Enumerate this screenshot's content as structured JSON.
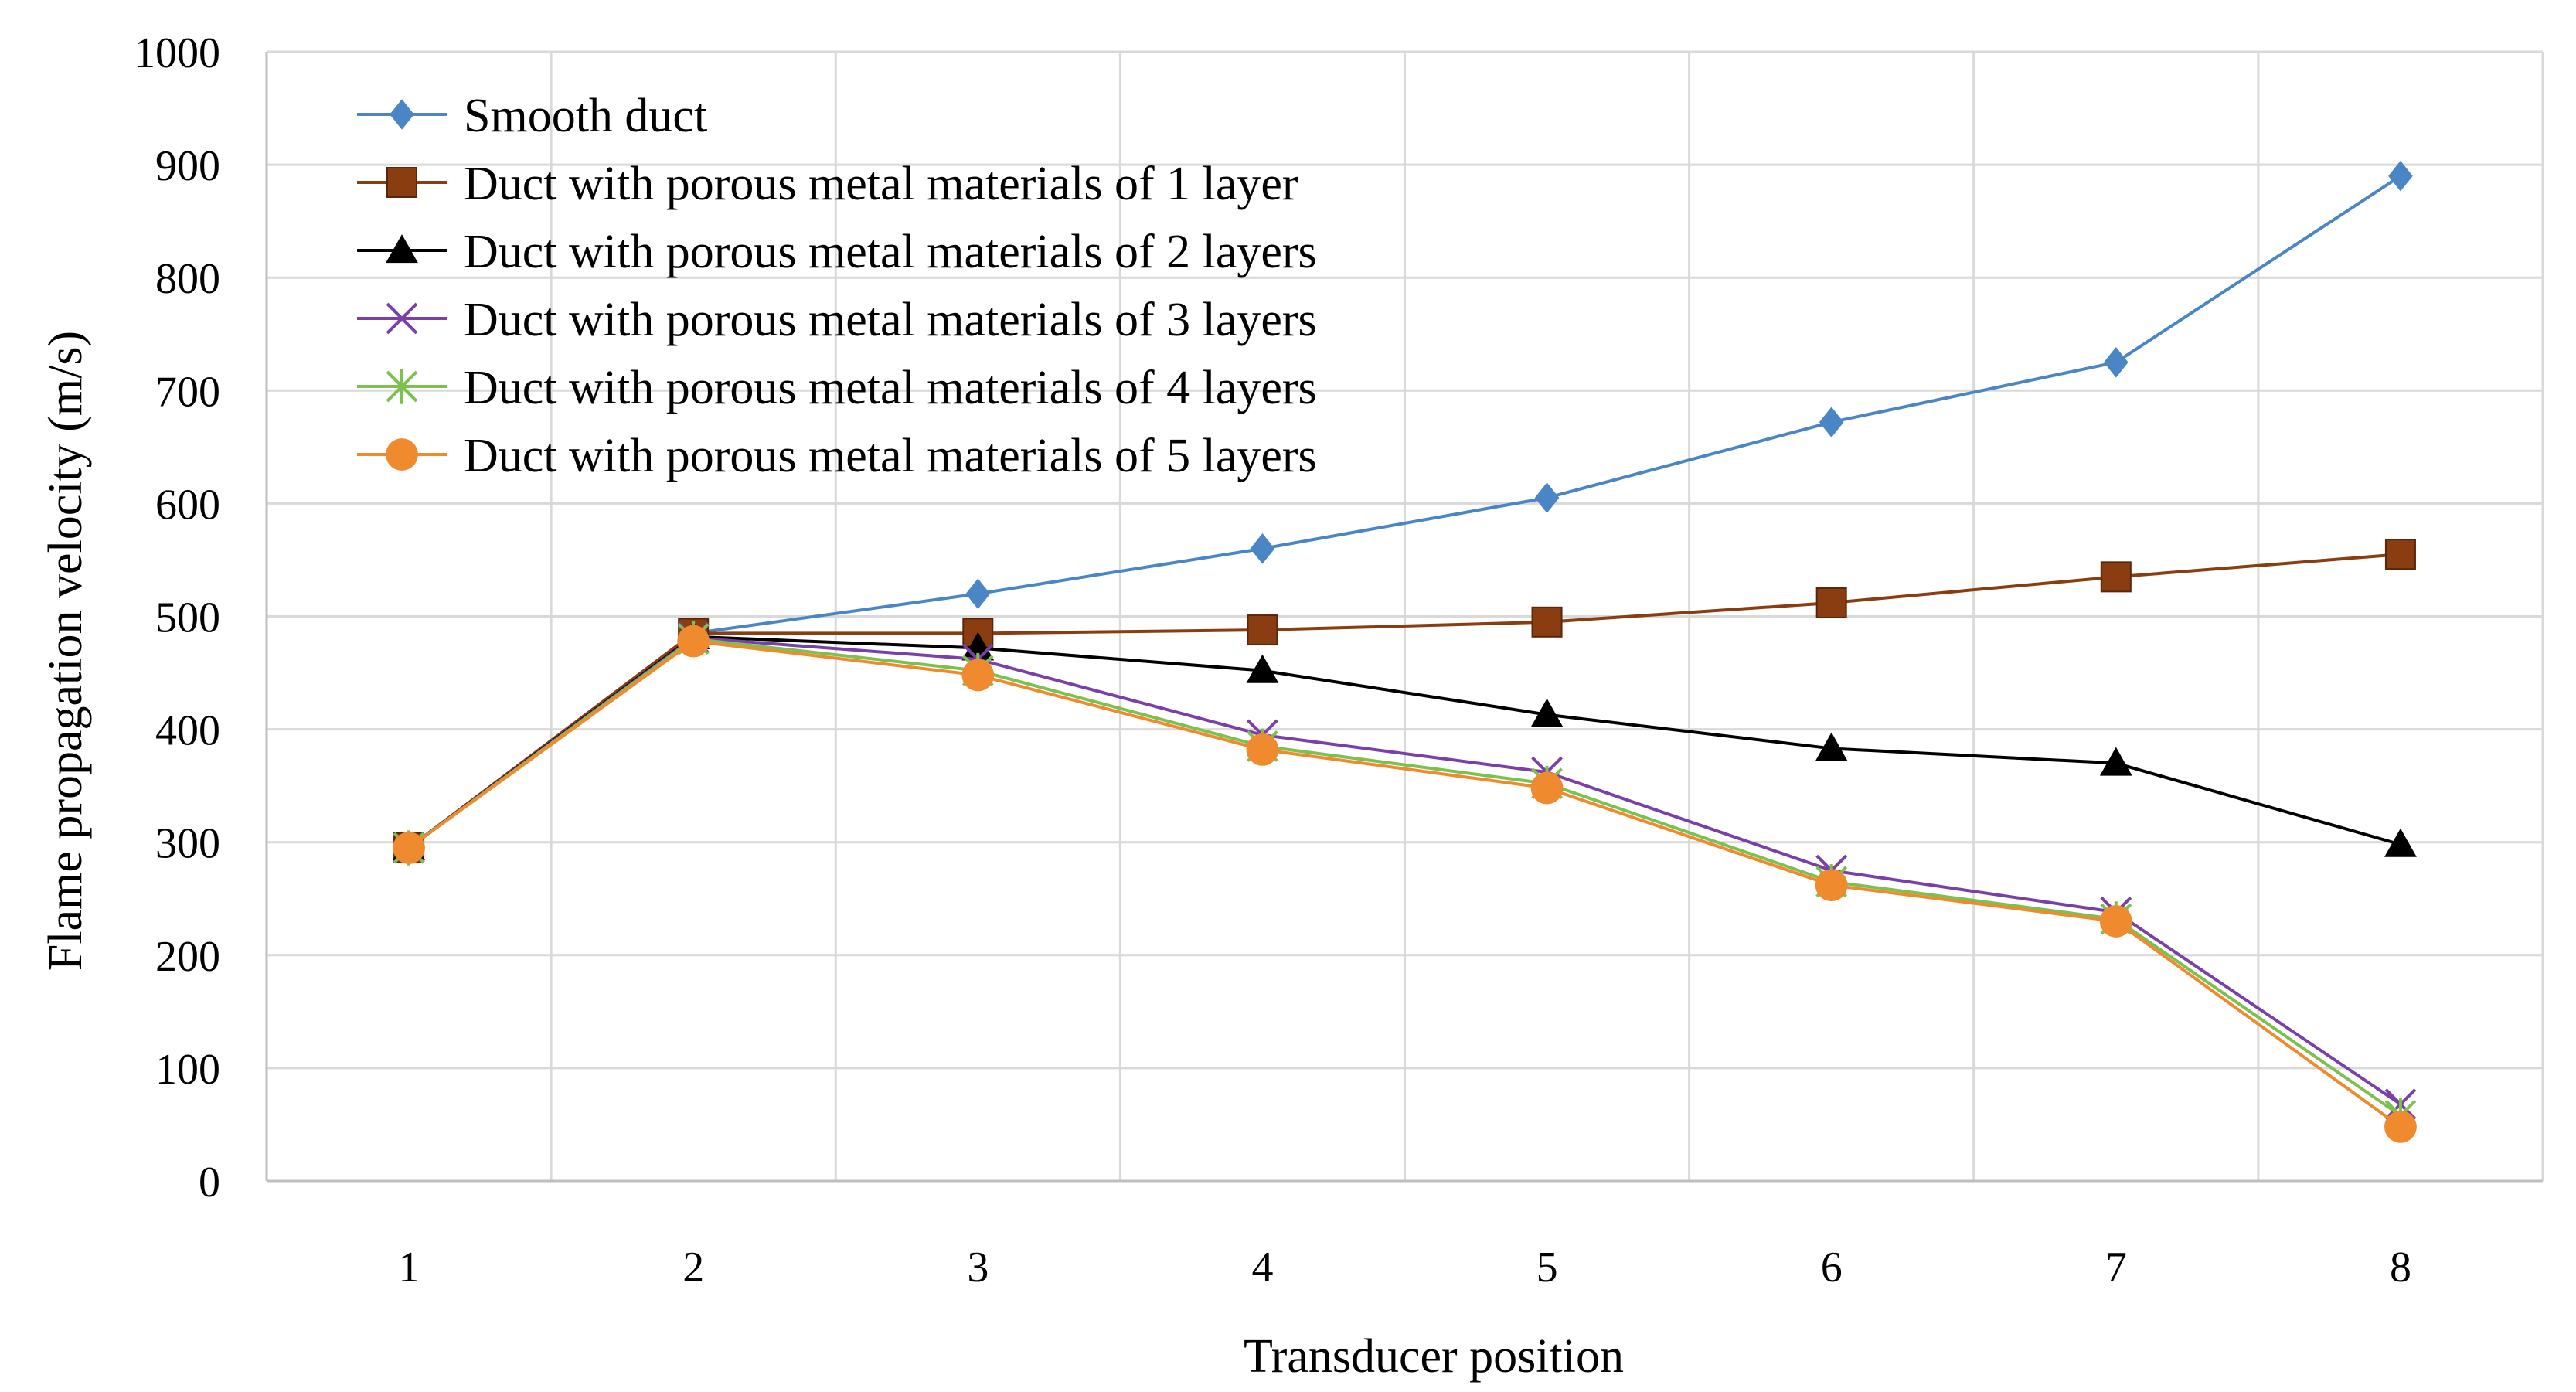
{
  "chart_data": {
    "type": "line",
    "title": "",
    "xlabel": "Transducer position",
    "ylabel": "Flame propagation velocity (m/s)",
    "x": [
      1,
      2,
      3,
      4,
      5,
      6,
      7,
      8
    ],
    "x_tick_labels": [
      "1",
      "2",
      "3",
      "4",
      "5",
      "6",
      "7",
      "8"
    ],
    "ylim": [
      0,
      1000
    ],
    "y_ticks": [
      0,
      100,
      200,
      300,
      400,
      500,
      600,
      700,
      800,
      900,
      1000
    ],
    "y_tick_labels": [
      "0",
      "100",
      "200",
      "300",
      "400",
      "500",
      "600",
      "700",
      "800",
      "900",
      "1000"
    ],
    "grid": true,
    "legend_position": "top-left",
    "series": [
      {
        "name": "Smooth duct",
        "color": "#4a86c5",
        "marker": "diamond",
        "values": [
          295,
          485,
          520,
          560,
          605,
          672,
          725,
          890
        ]
      },
      {
        "name": "Duct with porous metal materials of 1 layer",
        "color": "#8b3d12",
        "marker": "square",
        "values": [
          295,
          485,
          485,
          488,
          495,
          512,
          535,
          555
        ]
      },
      {
        "name": "Duct with porous metal materials of 2 layers",
        "color": "#000000",
        "marker": "triangle",
        "values": [
          295,
          482,
          472,
          452,
          413,
          383,
          370,
          298
        ]
      },
      {
        "name": "Duct with porous metal materials of 3 layers",
        "color": "#7a3fa8",
        "marker": "x",
        "values": [
          295,
          481,
          462,
          395,
          362,
          275,
          238,
          68
        ]
      },
      {
        "name": "Duct with porous metal materials of 4 layers",
        "color": "#7cc04f",
        "marker": "star",
        "values": [
          295,
          480,
          452,
          385,
          352,
          265,
          232,
          58
        ]
      },
      {
        "name": "Duct with porous metal materials of 5 layers",
        "color": "#f08a2e",
        "marker": "circle",
        "values": [
          295,
          478,
          448,
          382,
          348,
          262,
          230,
          48
        ]
      }
    ]
  }
}
